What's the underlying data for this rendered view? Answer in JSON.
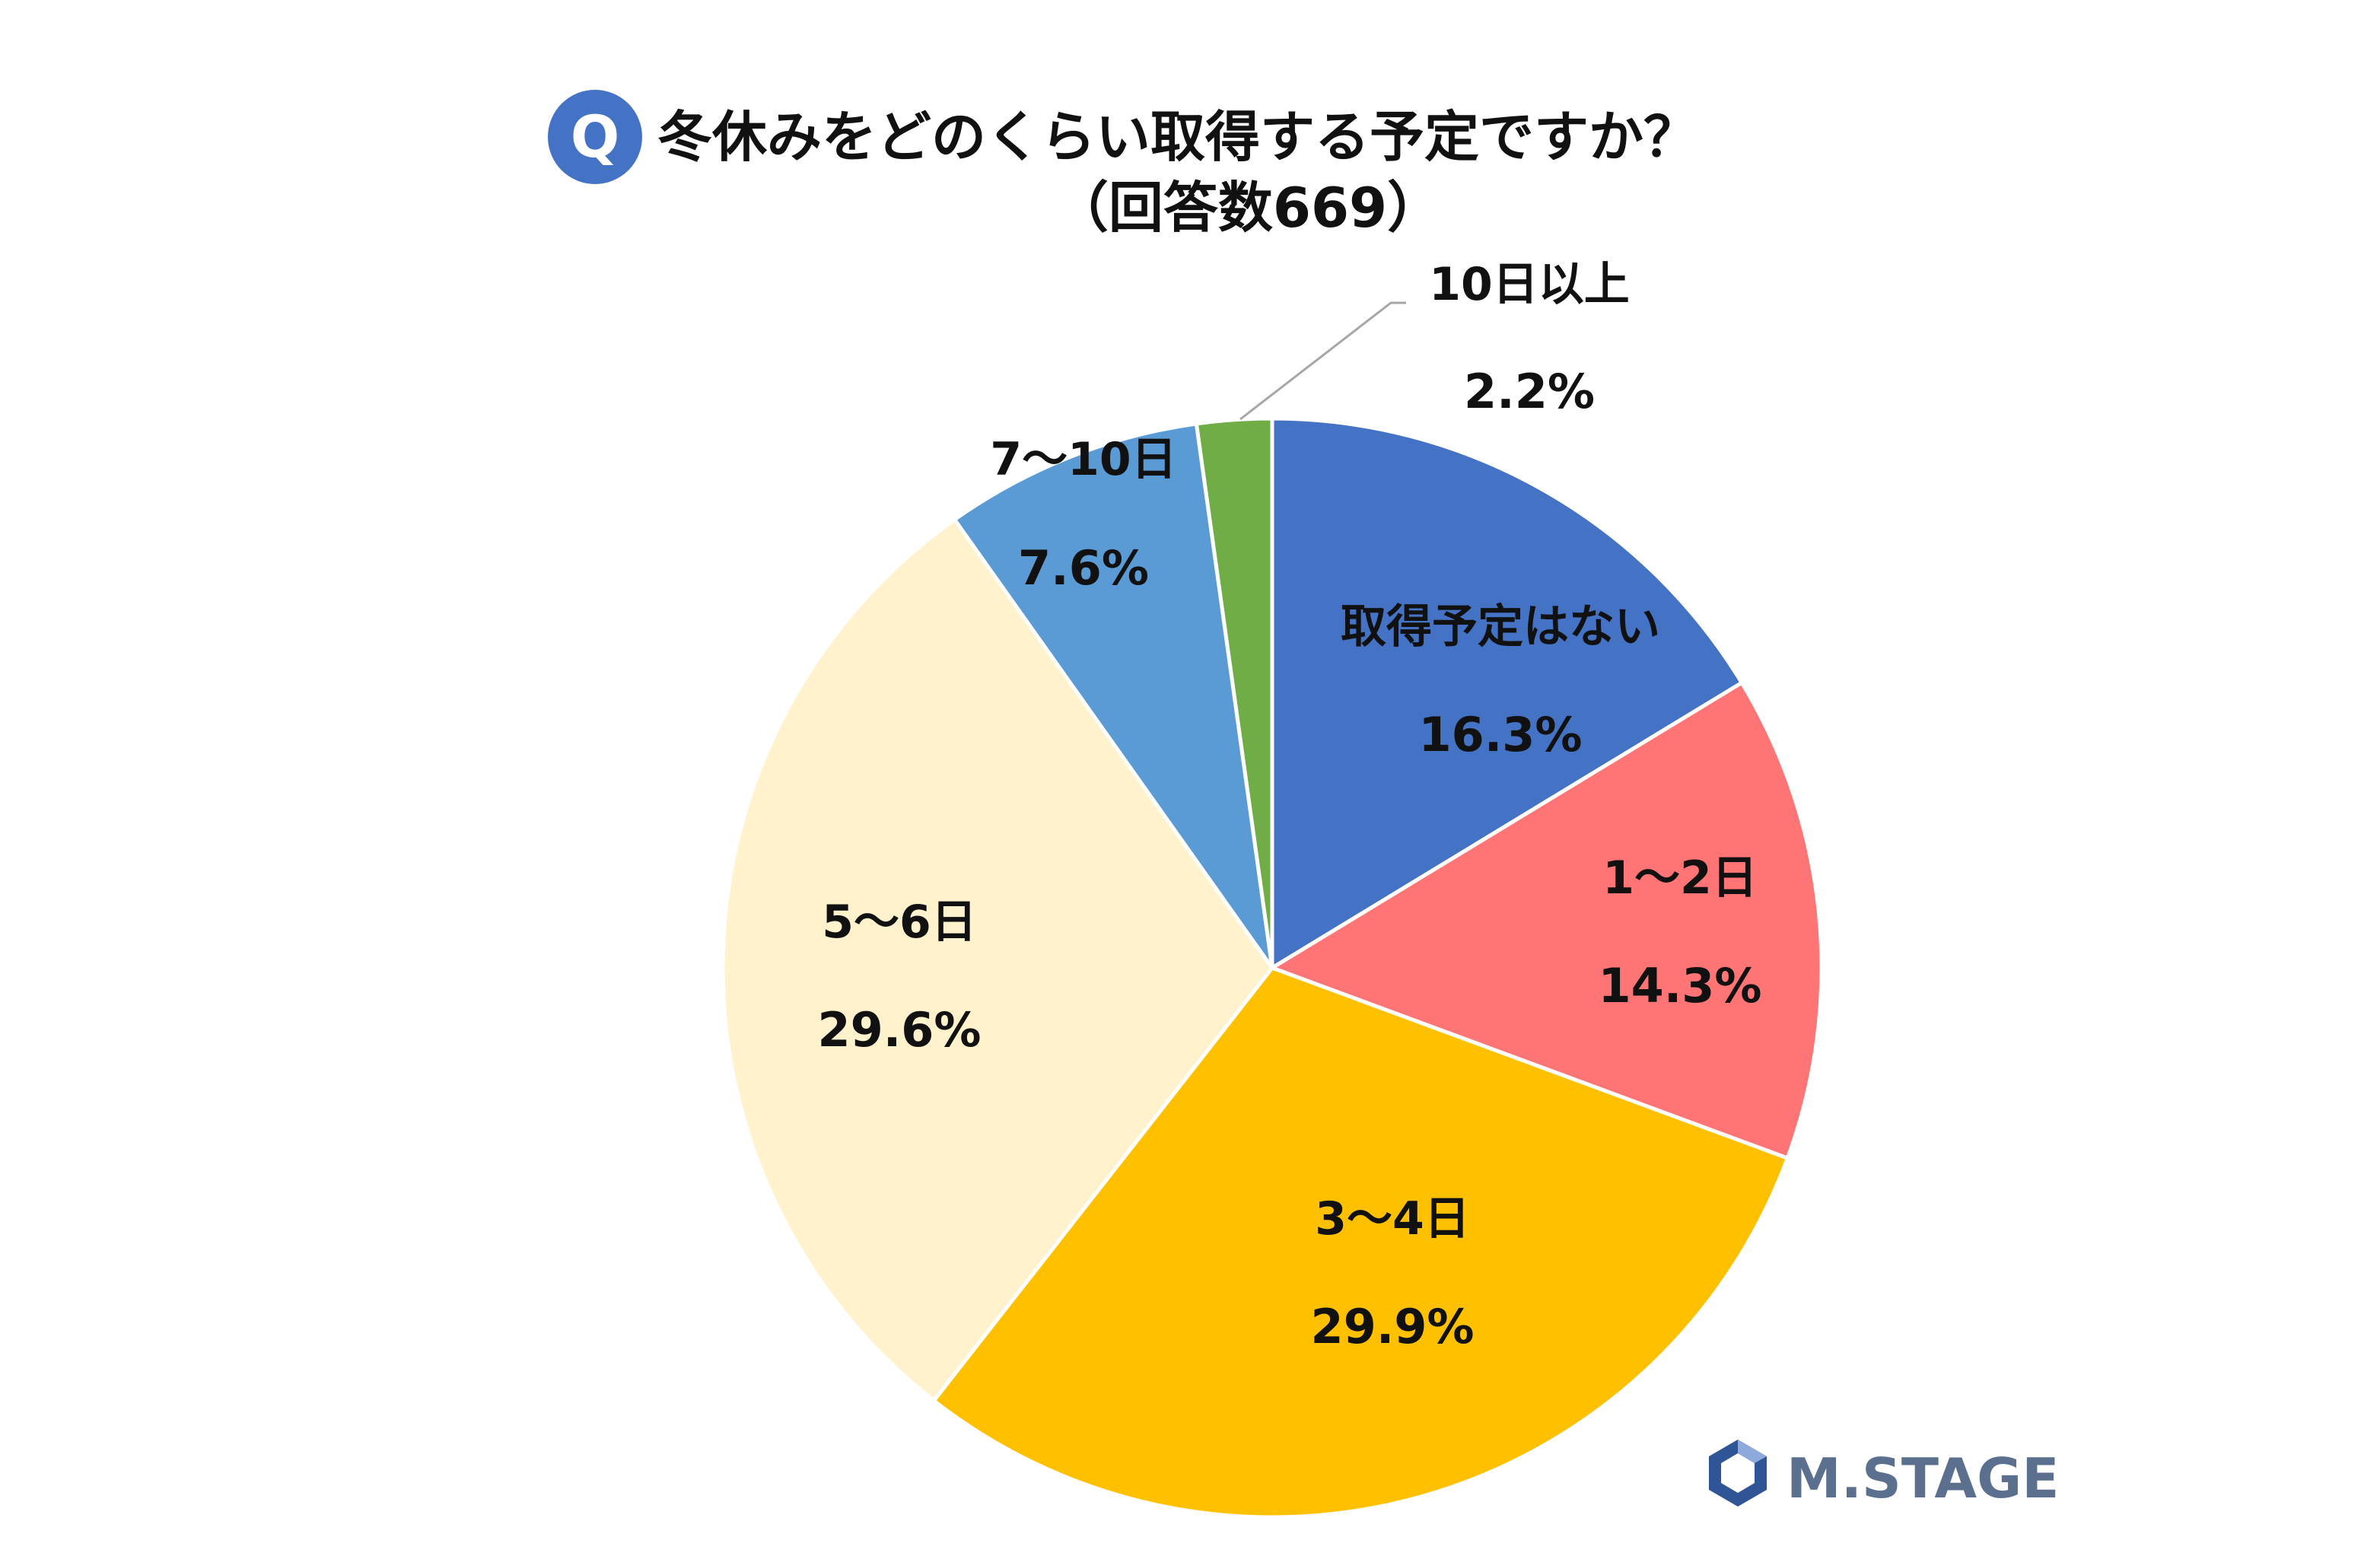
{
  "question_badge": "Q",
  "title": "冬休みをどのくらい取得する予定ですか？",
  "subtitle": "（回答数669）",
  "brand": {
    "name": "M.STAGE"
  },
  "colors": {
    "badge": "#4472C4",
    "logo_dark": "#2F5597",
    "logo_light": "#8EA9DB",
    "logo_text": "#5B6F8F",
    "leader_line": "#A6A6A6"
  },
  "chart_data": {
    "type": "pie",
    "title": "冬休みをどのくらい取得する予定ですか？",
    "subtitle": "（回答数669）",
    "start_angle_deg": 0,
    "direction": "clockwise",
    "slices": [
      {
        "label": "取得予定はない",
        "value": 16.3,
        "value_label": "16.3%",
        "color": "#4472C4"
      },
      {
        "label": "1～2日",
        "value": 14.3,
        "value_label": "14.3%",
        "color": "#FF7575"
      },
      {
        "label": "3～4日",
        "value": 29.9,
        "value_label": "29.9%",
        "color": "#FFC000"
      },
      {
        "label": "5～6日",
        "value": 29.6,
        "value_label": "29.6%",
        "color": "#FFF2CC"
      },
      {
        "label": "7～10日",
        "value": 7.6,
        "value_label": "7.6%",
        "color": "#5B9BD5"
      },
      {
        "label": "10日以上",
        "value": 2.2,
        "value_label": "2.2%",
        "color": "#70AD47"
      }
    ]
  }
}
